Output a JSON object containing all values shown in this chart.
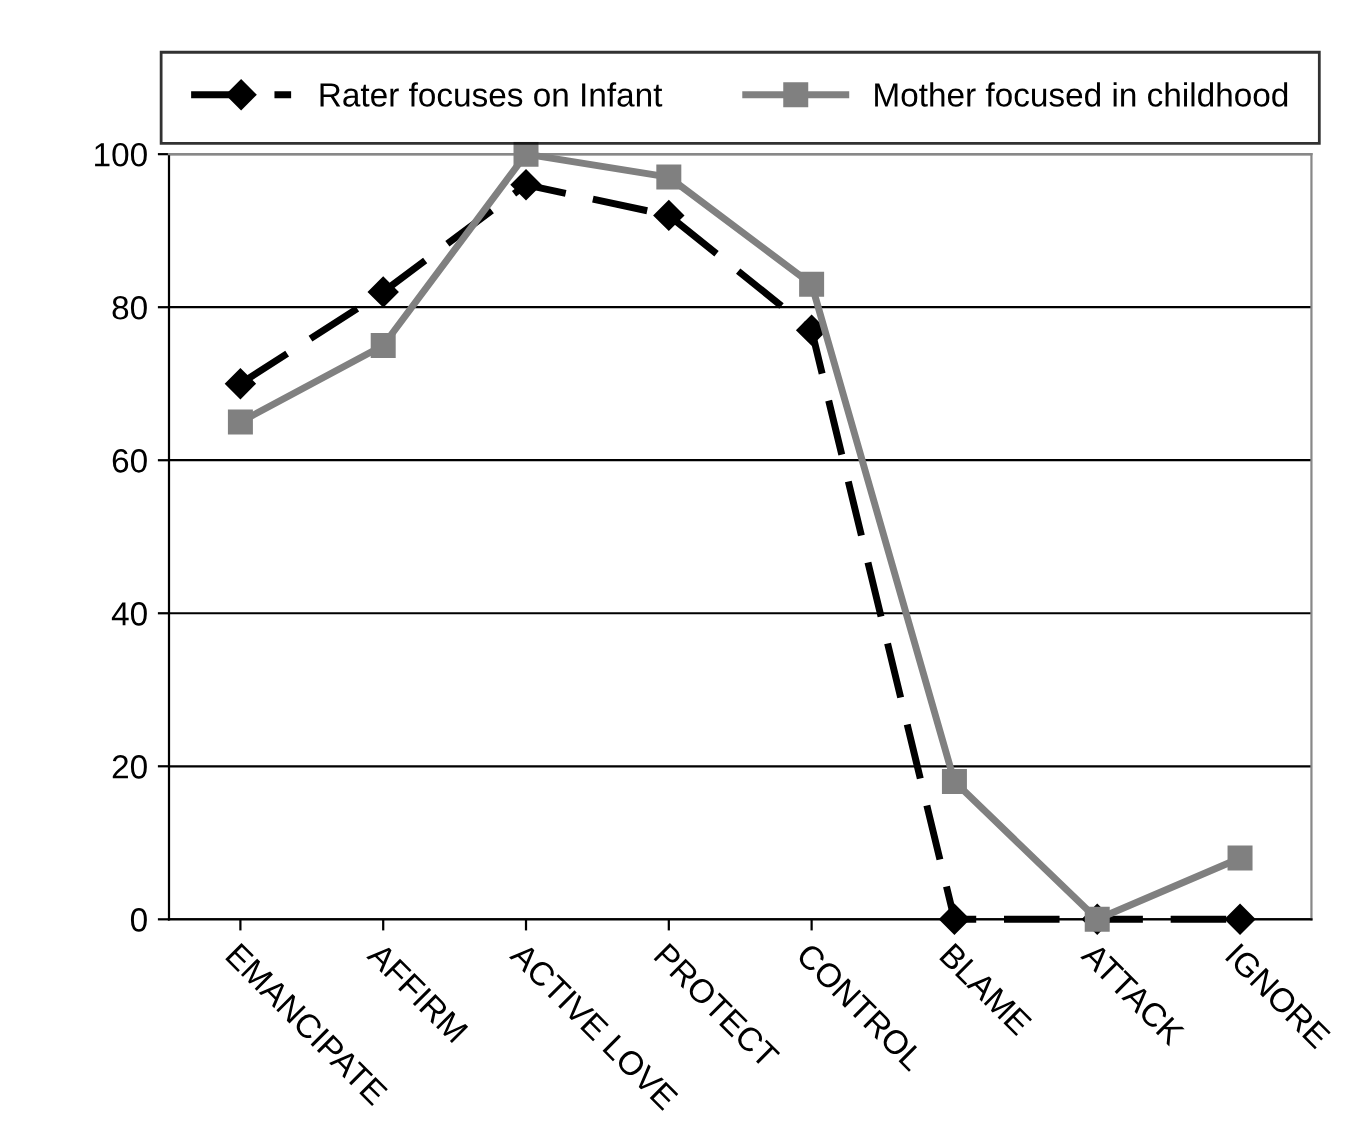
{
  "chart_data": {
    "type": "line",
    "categories": [
      "EMANCIPATE",
      "AFFIRM",
      "ACTIVE LOVE",
      "PROTECT",
      "CONTROL",
      "BLAME",
      "ATTACK",
      "IGNORE"
    ],
    "series": [
      {
        "name": "Rater focuses on Infant",
        "color": "#000000",
        "marker": "diamond",
        "line_style": "dashed",
        "values": [
          70,
          82,
          96,
          92,
          77,
          0,
          0,
          0
        ]
      },
      {
        "name": "Mother focused in childhood",
        "color": "#808080",
        "marker": "square",
        "line_style": "solid",
        "values": [
          65,
          75,
          100,
          97,
          83,
          18,
          0,
          8
        ]
      }
    ],
    "ylim": [
      0,
      100
    ],
    "yticks": [
      0,
      20,
      40,
      60,
      80,
      100
    ],
    "grid": "y",
    "legend": "top"
  }
}
